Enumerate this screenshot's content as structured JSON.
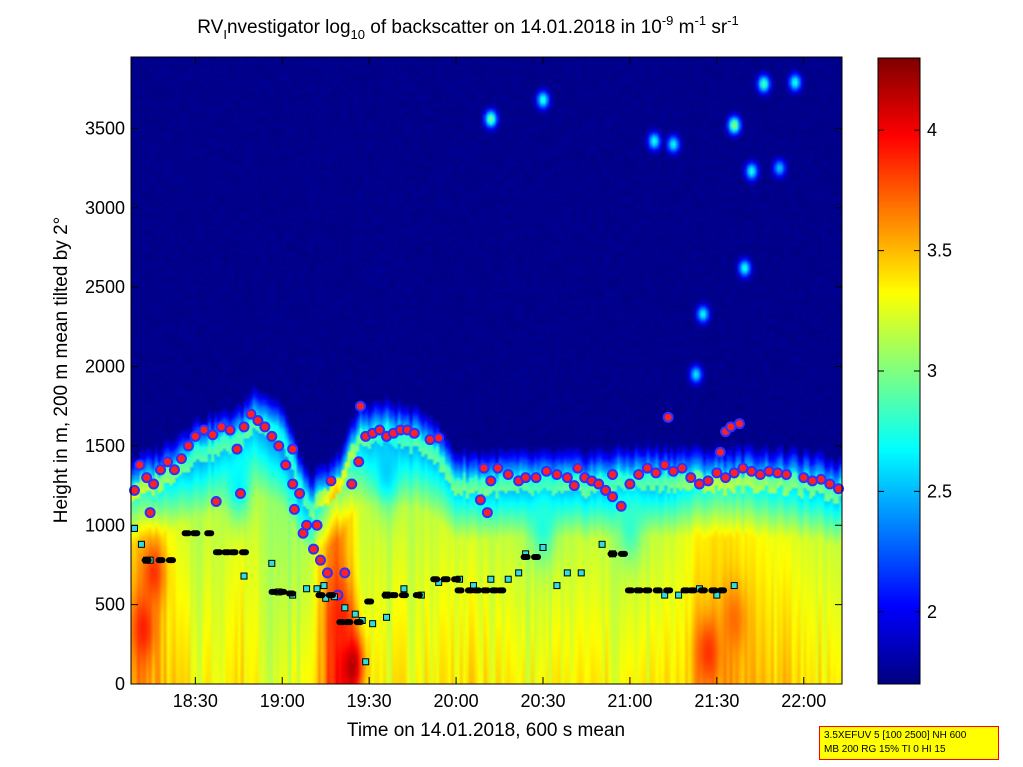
{
  "chart_data": {
    "type": "heatmap",
    "title": {
      "prefix": "RV",
      "sub_i": "I",
      "mid": "nvestigator log",
      "sub_10": "10",
      "mid2": " of backscatter on 14.01.2018 in 10",
      "sup_exp": "-9",
      "unit_m": " m",
      "sup_m": "-1",
      "unit_sr": " sr",
      "sup_sr": "-1"
    },
    "xlabel": "Time on 14.01.2018, 600 s mean",
    "ylabel": "Height in m, 200 m mean tilted by 2°",
    "xlim": [
      18.13,
      22.22
    ],
    "ylim": [
      0,
      3950
    ],
    "x_ticks": [
      {
        "value": 18.5,
        "label": "18:30"
      },
      {
        "value": 19.0,
        "label": "19:00"
      },
      {
        "value": 19.5,
        "label": "19:30"
      },
      {
        "value": 20.0,
        "label": "20:00"
      },
      {
        "value": 20.5,
        "label": "20:30"
      },
      {
        "value": 21.0,
        "label": "21:00"
      },
      {
        "value": 21.5,
        "label": "21:30"
      },
      {
        "value": 22.0,
        "label": "22:00"
      }
    ],
    "y_ticks": [
      {
        "value": 0,
        "label": "0"
      },
      {
        "value": 500,
        "label": "500"
      },
      {
        "value": 1000,
        "label": "1000"
      },
      {
        "value": 1500,
        "label": "1500"
      },
      {
        "value": 2000,
        "label": "2000"
      },
      {
        "value": 2500,
        "label": "2500"
      },
      {
        "value": 3000,
        "label": "3000"
      },
      {
        "value": 3500,
        "label": "3500"
      }
    ],
    "colorbar": {
      "range": [
        1.7,
        4.3
      ],
      "ticks": [
        {
          "value": 2,
          "label": "2"
        },
        {
          "value": 2.5,
          "label": "2.5"
        },
        {
          "value": 3,
          "label": "3"
        },
        {
          "value": 3.5,
          "label": "3.5"
        },
        {
          "value": 4,
          "label": "4"
        }
      ]
    },
    "colors": {
      "background": "#00008f",
      "pbl_marker_fill": "#ff2020",
      "pbl_marker_edge": "#3030ff",
      "cloud_marker_fill": "#30e0e0",
      "layer_marker": "#000000"
    },
    "field": {
      "time_nodes": [
        18.13,
        18.3,
        18.5,
        18.75,
        18.85,
        19.0,
        19.15,
        19.3,
        19.45,
        19.6,
        19.85,
        20.0,
        20.2,
        20.5,
        20.75,
        21.0,
        21.2,
        21.5,
        21.75,
        22.0,
        22.22
      ],
      "top_height": [
        1260,
        1330,
        1500,
        1580,
        1720,
        1600,
        1150,
        1250,
        1600,
        1620,
        1540,
        1300,
        1300,
        1300,
        1300,
        1330,
        1330,
        1320,
        1330,
        1300,
        1250
      ],
      "surface_value": [
        3.65,
        3.5,
        3.3,
        3.4,
        3.35,
        3.2,
        3.3,
        3.9,
        3.4,
        3.3,
        3.35,
        3.4,
        3.35,
        3.3,
        3.35,
        3.3,
        3.35,
        3.6,
        3.5,
        3.4,
        3.35
      ],
      "features": [
        {
          "t": 18.2,
          "h": 350,
          "v": 3.9
        },
        {
          "t": 18.26,
          "h": 700,
          "v": 3.85
        },
        {
          "t": 19.4,
          "h": 120,
          "v": 4.2
        },
        {
          "t": 19.34,
          "h": 400,
          "v": 3.9
        },
        {
          "t": 21.45,
          "h": 200,
          "v": 3.85
        },
        {
          "t": 21.6,
          "h": 400,
          "v": 3.7
        },
        {
          "t": 19.6,
          "h": 1350,
          "v": 2.55
        },
        {
          "t": 18.75,
          "h": 1250,
          "v": 2.65
        },
        {
          "t": 21.0,
          "h": 1000,
          "v": 2.8
        },
        {
          "t": 20.5,
          "h": 1000,
          "v": 2.75
        }
      ],
      "clouds": [
        {
          "t": 20.2,
          "h": 3560,
          "v": 3.0
        },
        {
          "t": 20.5,
          "h": 3680,
          "v": 2.8
        },
        {
          "t": 21.14,
          "h": 3420,
          "v": 2.75
        },
        {
          "t": 21.25,
          "h": 3400,
          "v": 2.7
        },
        {
          "t": 21.6,
          "h": 3520,
          "v": 3.1
        },
        {
          "t": 21.7,
          "h": 3230,
          "v": 2.75
        },
        {
          "t": 21.77,
          "h": 3780,
          "v": 2.9
        },
        {
          "t": 21.95,
          "h": 3790,
          "v": 2.75
        },
        {
          "t": 21.66,
          "h": 2620,
          "v": 2.75
        },
        {
          "t": 21.42,
          "h": 2330,
          "v": 2.7
        },
        {
          "t": 21.38,
          "h": 1950,
          "v": 2.65
        },
        {
          "t": 21.86,
          "h": 3250,
          "v": 2.55
        }
      ]
    },
    "series": [
      {
        "name": "boundary layer top",
        "marker": "circle",
        "x": [
          18.15,
          18.18,
          18.22,
          18.26,
          18.3,
          18.34,
          18.38,
          18.42,
          18.46,
          18.5,
          18.55,
          18.6,
          18.65,
          18.7,
          18.74,
          18.78,
          18.82,
          18.86,
          18.9,
          18.94,
          18.98,
          19.02,
          19.06,
          19.1,
          19.14,
          19.18,
          19.22,
          19.26,
          19.32,
          19.36,
          19.4,
          19.44,
          19.48,
          19.52,
          19.56,
          19.6,
          19.64,
          19.68,
          19.72,
          19.76,
          19.85,
          19.9,
          20.14,
          20.2,
          20.24,
          20.3,
          20.36,
          20.4,
          20.46,
          20.52,
          20.58,
          20.64,
          20.7,
          20.74,
          20.78,
          20.82,
          20.86,
          20.9,
          20.95,
          21.0,
          21.05,
          21.1,
          21.15,
          21.2,
          21.25,
          21.3,
          21.35,
          21.4,
          21.45,
          21.5,
          21.55,
          21.6,
          21.65,
          21.7,
          21.75,
          21.8,
          21.85,
          21.9,
          22.0,
          22.05,
          22.1,
          22.15,
          22.2,
          19.07,
          19.12,
          19.2,
          19.28,
          19.45,
          20.16,
          20.18,
          21.22,
          21.55,
          21.58,
          21.63,
          21.52,
          19.06,
          18.76,
          18.62,
          18.24,
          20.68,
          20.9
        ],
        "y": [
          1220,
          1380,
          1300,
          1260,
          1350,
          1400,
          1350,
          1420,
          1500,
          1560,
          1600,
          1570,
          1620,
          1600,
          1480,
          1620,
          1700,
          1660,
          1620,
          1560,
          1500,
          1380,
          1260,
          1200,
          1000,
          850,
          780,
          700,
          560,
          700,
          1260,
          1400,
          1560,
          1580,
          1600,
          1560,
          1580,
          1600,
          1600,
          1580,
          1540,
          1550,
          1160,
          1280,
          1360,
          1320,
          1280,
          1300,
          1300,
          1340,
          1320,
          1300,
          1360,
          1300,
          1280,
          1260,
          1220,
          1180,
          1120,
          1260,
          1320,
          1360,
          1330,
          1380,
          1340,
          1360,
          1300,
          1260,
          1280,
          1330,
          1300,
          1330,
          1360,
          1340,
          1320,
          1340,
          1330,
          1320,
          1300,
          1280,
          1290,
          1260,
          1230,
          1100,
          950,
          1000,
          1280,
          1750,
          1360,
          1080,
          1680,
          1590,
          1620,
          1640,
          1460,
          1480,
          1200,
          1150,
          1080,
          1250,
          1320
        ]
      },
      {
        "name": "cloud base",
        "marker": "square",
        "x": [
          18.15,
          18.19,
          18.22,
          18.98,
          19.06,
          19.14,
          19.2,
          19.25,
          19.3,
          19.36,
          19.42,
          19.46,
          19.52,
          19.6,
          19.7,
          19.8,
          19.9,
          20.02,
          20.1,
          20.2,
          20.3,
          20.36,
          20.4,
          20.5,
          20.58,
          20.64,
          20.72,
          20.84,
          20.9,
          21.2,
          21.28,
          21.4,
          21.5,
          21.6,
          18.78,
          18.94,
          19.24,
          19.48,
          18.24,
          19.6
        ],
        "y": [
          980,
          880,
          780,
          580,
          560,
          600,
          600,
          540,
          550,
          480,
          440,
          400,
          380,
          560,
          600,
          560,
          640,
          660,
          620,
          660,
          660,
          700,
          820,
          860,
          620,
          700,
          700,
          880,
          820,
          560,
          560,
          600,
          560,
          620,
          680,
          760,
          620,
          140,
          780,
          420
        ]
      },
      {
        "name": "aerosol layers",
        "marker": "dash",
        "x": [
          18.22,
          18.3,
          18.36,
          18.45,
          18.5,
          18.58,
          18.63,
          18.68,
          18.72,
          18.78,
          18.95,
          19.0,
          19.05,
          19.22,
          19.28,
          19.34,
          19.38,
          19.44,
          19.5,
          19.6,
          19.64,
          19.7,
          19.78,
          19.88,
          19.94,
          20.0,
          20.02,
          20.08,
          20.12,
          20.17,
          20.22,
          20.26,
          20.4,
          20.46,
          20.9,
          20.96,
          21.0,
          21.05,
          21.1,
          21.16,
          21.22,
          21.32,
          21.36,
          21.42,
          21.48,
          21.53
        ],
        "y": [
          780,
          780,
          780,
          950,
          950,
          950,
          830,
          830,
          830,
          830,
          580,
          580,
          570,
          560,
          560,
          390,
          390,
          390,
          520,
          560,
          560,
          560,
          560,
          660,
          660,
          660,
          590,
          590,
          590,
          590,
          590,
          590,
          800,
          800,
          820,
          820,
          590,
          590,
          590,
          590,
          590,
          590,
          590,
          590,
          590,
          590
        ]
      }
    ]
  },
  "settings": {
    "line1": "3.5XEFUV 5 [100 2500] NH 600",
    "line2": "MB 200 RG 15% TI 0 HI 15"
  }
}
